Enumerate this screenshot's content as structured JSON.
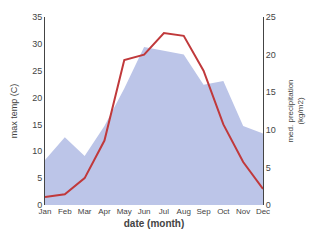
{
  "chart_data": {
    "type": "line",
    "x_label": "date (month)",
    "y_label": "max temp (C)",
    "y2_label": "med. precipitation\n(kg/m2)",
    "categories": [
      "Jan",
      "Feb",
      "Mar",
      "Apr",
      "May",
      "Jun",
      "Jul",
      "Aug",
      "Sep",
      "Oct",
      "Nov",
      "Dec"
    ],
    "series": [
      {
        "type": "area",
        "axis": "y2",
        "color": "#bcc5e8",
        "values": [
          6.0,
          9.0,
          6.5,
          10.5,
          15.5,
          21.0,
          20.5,
          20.0,
          16.0,
          16.5,
          10.5,
          9.5
        ]
      },
      {
        "type": "line",
        "color": "#c0393b",
        "values": [
          1.5,
          2.0,
          5.0,
          12.0,
          27.0,
          28.0,
          32.0,
          31.5,
          25.0,
          15.0,
          8.0,
          3.0
        ]
      }
    ],
    "ylim": [
      0,
      35
    ],
    "yticks": [
      0,
      5,
      10,
      15,
      20,
      25,
      30,
      35
    ],
    "y2lim": [
      0,
      25
    ],
    "y2ticks": [
      0,
      5,
      10,
      15,
      20,
      25
    ],
    "grid": false
  }
}
